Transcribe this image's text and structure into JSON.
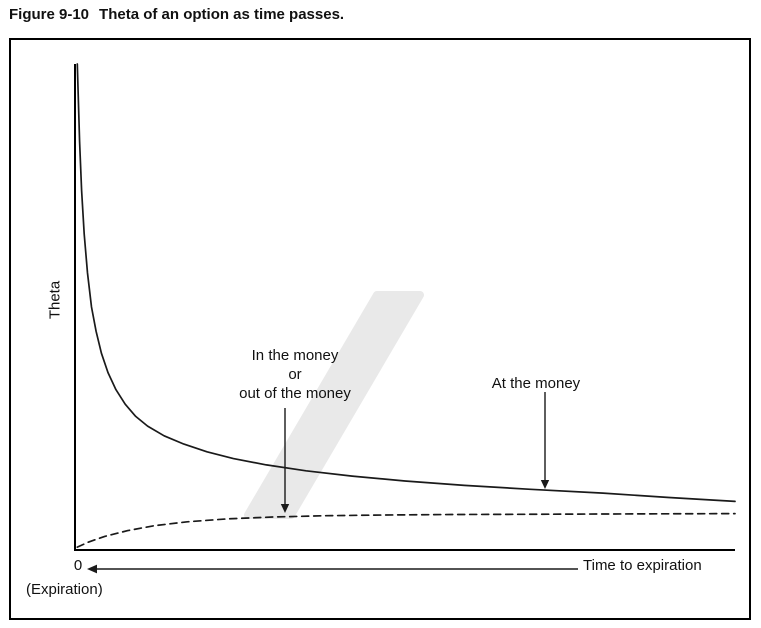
{
  "figure": {
    "label": "Figure 9-10",
    "caption": "Theta of an option as time passes."
  },
  "axes": {
    "y_label": "Theta",
    "x_label": "Time to expiration",
    "origin_label": "0",
    "origin_sublabel": "(Expiration)"
  },
  "annotations": {
    "itm_otm": "In the money\nor\nout of the money",
    "atm": "At the money"
  },
  "colors": {
    "line": "#1a1a1a",
    "frame": "#000000",
    "watermark": "#e9e9e9"
  },
  "chart_data": {
    "type": "line",
    "title": "Theta of an option as time passes",
    "xlabel": "Time to expiration",
    "ylabel": "Theta",
    "xlim": [
      0,
      100
    ],
    "ylim": [
      0,
      100
    ],
    "grid": false,
    "legend": "inline annotations with arrows",
    "x_axis_note": "arrow points left toward 0 (Expiration)",
    "series": [
      {
        "name": "At the money",
        "style": "solid",
        "x": [
          0.35,
          0.5,
          0.7,
          1.0,
          1.4,
          1.9,
          2.5,
          3.2,
          4.0,
          5.0,
          6.2,
          7.6,
          9.2,
          11,
          13.5,
          16.5,
          20,
          24,
          29,
          35,
          42,
          50,
          59,
          69,
          80,
          90,
          100
        ],
        "y": [
          100,
          93,
          84,
          74,
          65,
          57,
          50,
          45,
          40.5,
          36.5,
          33,
          30,
          27.5,
          25.5,
          23.5,
          21.8,
          20.2,
          18.8,
          17.5,
          16.3,
          15.2,
          14.2,
          13.3,
          12.5,
          11.7,
          10.8,
          10
        ]
      },
      {
        "name": "In the money or out of the money",
        "style": "dashed",
        "x": [
          0.35,
          2,
          4.5,
          8,
          12,
          17,
          23,
          30,
          38,
          47,
          57,
          68,
          80,
          90,
          100
        ],
        "y": [
          0.6,
          1.6,
          2.8,
          4.0,
          5.0,
          5.8,
          6.4,
          6.8,
          7.05,
          7.2,
          7.3,
          7.35,
          7.4,
          7.45,
          7.5
        ]
      }
    ]
  }
}
